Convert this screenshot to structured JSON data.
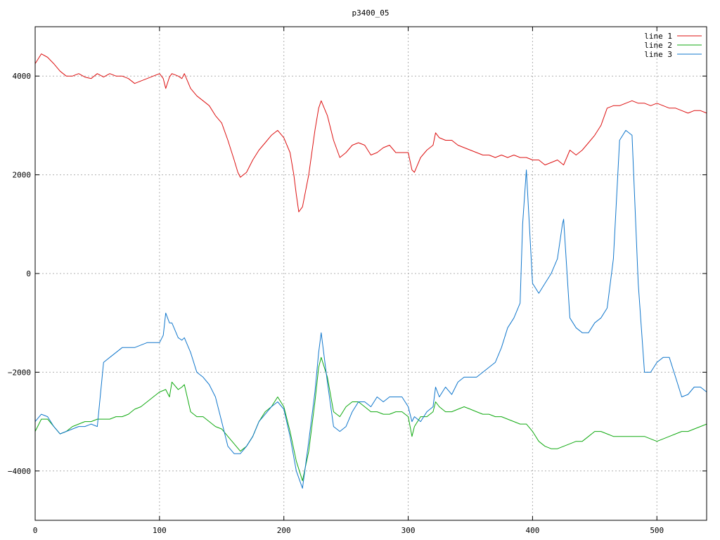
{
  "chart_data": {
    "type": "line",
    "title": "p3400_05",
    "xlabel": "",
    "ylabel": "",
    "xlim": [
      0,
      540
    ],
    "ylim": [
      -5000,
      5000
    ],
    "xticks": [
      0,
      100,
      200,
      300,
      400,
      500
    ],
    "yticks": [
      -4000,
      -2000,
      0,
      2000,
      4000
    ],
    "xtick_labels": [
      "0",
      "100",
      "200",
      "300",
      "400",
      "500"
    ],
    "ytick_labels": [
      "−4000",
      "−2000",
      "0",
      "2000",
      "4000"
    ],
    "grid": true,
    "legend_position": "top-right",
    "series": [
      {
        "name": "line 1",
        "color": "#dd1111",
        "x": [
          0,
          5,
          10,
          15,
          20,
          25,
          30,
          35,
          40,
          45,
          50,
          55,
          60,
          65,
          70,
          75,
          80,
          85,
          90,
          95,
          100,
          103,
          105,
          108,
          110,
          115,
          118,
          120,
          125,
          130,
          135,
          140,
          145,
          150,
          155,
          160,
          163,
          165,
          170,
          175,
          180,
          185,
          190,
          195,
          200,
          205,
          208,
          210,
          212,
          215,
          220,
          225,
          228,
          230,
          235,
          240,
          245,
          250,
          255,
          260,
          265,
          270,
          275,
          280,
          285,
          290,
          295,
          300,
          303,
          305,
          310,
          315,
          320,
          322,
          325,
          330,
          335,
          340,
          345,
          350,
          355,
          360,
          365,
          370,
          375,
          380,
          385,
          390,
          395,
          400,
          405,
          410,
          415,
          420,
          425,
          430,
          435,
          440,
          445,
          450,
          455,
          460,
          465,
          470,
          475,
          480,
          485,
          490,
          495,
          500,
          505,
          510,
          515,
          520,
          525,
          530,
          535,
          540
        ],
        "values": [
          4250,
          4450,
          4380,
          4250,
          4100,
          4000,
          4000,
          4050,
          3980,
          3950,
          4050,
          3980,
          4050,
          4000,
          4000,
          3950,
          3850,
          3900,
          3950,
          4000,
          4050,
          3950,
          3750,
          3980,
          4050,
          4000,
          3950,
          4050,
          3750,
          3600,
          3500,
          3400,
          3200,
          3050,
          2700,
          2300,
          2050,
          1950,
          2050,
          2300,
          2500,
          2650,
          2800,
          2900,
          2750,
          2450,
          2000,
          1600,
          1250,
          1350,
          2000,
          2900,
          3350,
          3500,
          3200,
          2700,
          2350,
          2450,
          2600,
          2650,
          2600,
          2400,
          2450,
          2550,
          2600,
          2450,
          2450,
          2450,
          2100,
          2050,
          2350,
          2500,
          2600,
          2850,
          2750,
          2700,
          2700,
          2600,
          2550,
          2500,
          2450,
          2400,
          2400,
          2350,
          2400,
          2350,
          2400,
          2350,
          2350,
          2300,
          2300,
          2200,
          2250,
          2300,
          2200,
          2500,
          2400,
          2500,
          2650,
          2800,
          3000,
          3350,
          3400,
          3400,
          3450,
          3500,
          3450,
          3450,
          3400,
          3450,
          3400,
          3350,
          3350,
          3300,
          3250,
          3300,
          3300,
          3250
        ]
      },
      {
        "name": "line 2",
        "color": "#11aa11",
        "x": [
          0,
          5,
          10,
          15,
          20,
          25,
          30,
          35,
          40,
          45,
          50,
          55,
          60,
          65,
          70,
          75,
          80,
          85,
          90,
          95,
          100,
          105,
          108,
          110,
          115,
          118,
          120,
          125,
          130,
          135,
          140,
          145,
          150,
          155,
          160,
          165,
          170,
          175,
          180,
          185,
          190,
          195,
          200,
          205,
          210,
          215,
          220,
          225,
          228,
          230,
          235,
          240,
          245,
          250,
          255,
          260,
          265,
          270,
          275,
          280,
          285,
          290,
          295,
          300,
          303,
          305,
          310,
          315,
          320,
          322,
          325,
          330,
          335,
          340,
          345,
          350,
          355,
          360,
          365,
          370,
          375,
          380,
          385,
          390,
          395,
          400,
          405,
          410,
          415,
          420,
          425,
          430,
          435,
          440,
          445,
          450,
          455,
          460,
          465,
          470,
          475,
          480,
          485,
          490,
          495,
          500,
          505,
          510,
          515,
          520,
          525,
          530,
          535,
          540
        ],
        "values": [
          -3200,
          -2950,
          -2950,
          -3100,
          -3250,
          -3200,
          -3100,
          -3050,
          -3000,
          -3000,
          -2950,
          -2950,
          -2950,
          -2900,
          -2900,
          -2850,
          -2750,
          -2700,
          -2600,
          -2500,
          -2400,
          -2350,
          -2500,
          -2200,
          -2350,
          -2300,
          -2250,
          -2800,
          -2900,
          -2900,
          -3000,
          -3100,
          -3150,
          -3300,
          -3450,
          -3600,
          -3500,
          -3300,
          -3000,
          -2800,
          -2700,
          -2500,
          -2700,
          -3200,
          -3800,
          -4200,
          -3600,
          -2600,
          -1900,
          -1700,
          -2100,
          -2800,
          -2900,
          -2700,
          -2600,
          -2600,
          -2700,
          -2800,
          -2800,
          -2850,
          -2850,
          -2800,
          -2800,
          -2900,
          -3300,
          -3100,
          -2900,
          -2900,
          -2800,
          -2600,
          -2700,
          -2800,
          -2800,
          -2750,
          -2700,
          -2750,
          -2800,
          -2850,
          -2850,
          -2900,
          -2900,
          -2950,
          -3000,
          -3050,
          -3050,
          -3200,
          -3400,
          -3500,
          -3550,
          -3550,
          -3500,
          -3450,
          -3400,
          -3400,
          -3300,
          -3200,
          -3200,
          -3250,
          -3300,
          -3300,
          -3300,
          -3300,
          -3300,
          -3300,
          -3350,
          -3400,
          -3350,
          -3300,
          -3250,
          -3200,
          -3200,
          -3150,
          -3100,
          -3050
        ]
      },
      {
        "name": "line 3",
        "color": "#1177cc",
        "x": [
          0,
          5,
          10,
          15,
          20,
          25,
          30,
          35,
          40,
          45,
          50,
          55,
          60,
          65,
          70,
          75,
          80,
          85,
          90,
          95,
          100,
          103,
          105,
          108,
          110,
          115,
          118,
          120,
          125,
          130,
          135,
          140,
          145,
          150,
          155,
          160,
          165,
          170,
          175,
          180,
          185,
          190,
          195,
          200,
          205,
          210,
          215,
          220,
          225,
          228,
          230,
          235,
          240,
          245,
          250,
          255,
          260,
          265,
          270,
          275,
          280,
          285,
          290,
          295,
          300,
          303,
          305,
          310,
          315,
          320,
          322,
          325,
          330,
          335,
          340,
          345,
          350,
          355,
          360,
          365,
          370,
          375,
          380,
          385,
          390,
          392,
          395,
          400,
          405,
          410,
          415,
          420,
          424,
          425,
          430,
          435,
          440,
          445,
          450,
          455,
          460,
          465,
          470,
          475,
          480,
          485,
          490,
          495,
          500,
          505,
          510,
          515,
          520,
          525,
          530,
          535,
          540
        ],
        "values": [
          -3000,
          -2850,
          -2900,
          -3100,
          -3250,
          -3200,
          -3150,
          -3100,
          -3100,
          -3050,
          -3100,
          -1800,
          -1700,
          -1600,
          -1500,
          -1500,
          -1500,
          -1450,
          -1400,
          -1400,
          -1400,
          -1250,
          -800,
          -1000,
          -1000,
          -1300,
          -1350,
          -1300,
          -1600,
          -2000,
          -2100,
          -2250,
          -2500,
          -3000,
          -3500,
          -3650,
          -3650,
          -3500,
          -3300,
          -3000,
          -2850,
          -2700,
          -2600,
          -2750,
          -3300,
          -4000,
          -4350,
          -3400,
          -2400,
          -1600,
          -1200,
          -2200,
          -3100,
          -3200,
          -3100,
          -2800,
          -2600,
          -2600,
          -2700,
          -2500,
          -2600,
          -2500,
          -2500,
          -2500,
          -2700,
          -3000,
          -2900,
          -3000,
          -2800,
          -2700,
          -2300,
          -2500,
          -2300,
          -2450,
          -2200,
          -2100,
          -2100,
          -2100,
          -2000,
          -1900,
          -1800,
          -1500,
          -1100,
          -900,
          -600,
          1000,
          2100,
          -200,
          -400,
          -200,
          0,
          300,
          1000,
          1100,
          -900,
          -1100,
          -1200,
          -1200,
          -1000,
          -900,
          -700,
          300,
          2700,
          2900,
          2800,
          -200,
          -2000,
          -2000,
          -1800,
          -1700,
          -1700,
          -2100,
          -2500,
          -2450,
          -2300,
          -2300,
          -2400
        ]
      }
    ]
  }
}
